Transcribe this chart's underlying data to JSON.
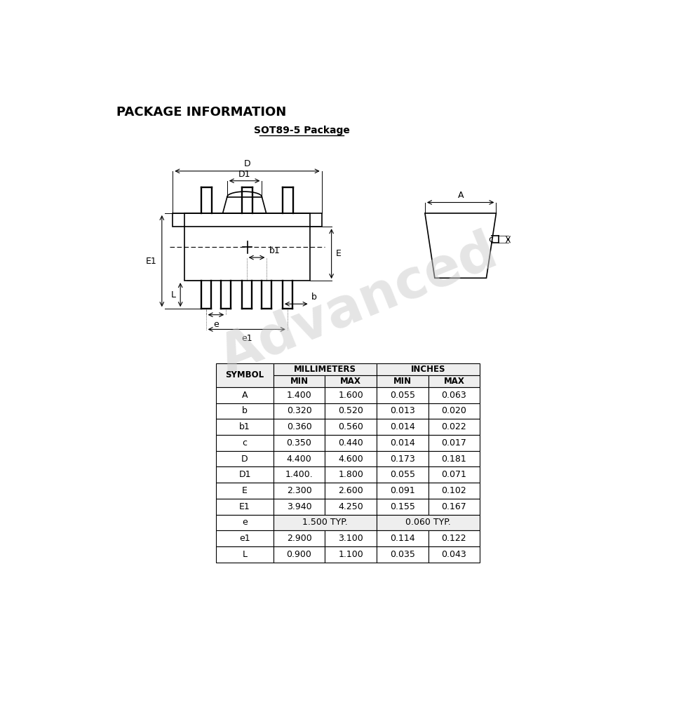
{
  "title": "PACKAGE INFORMATION",
  "subtitle": "SOT89-5 Package",
  "bg_color": "#ffffff",
  "table_data": {
    "rows": [
      [
        "A",
        "1.400",
        "1.600",
        "0.055",
        "0.063"
      ],
      [
        "b",
        "0.320",
        "0.520",
        "0.013",
        "0.020"
      ],
      [
        "b1",
        "0.360",
        "0.560",
        "0.014",
        "0.022"
      ],
      [
        "c",
        "0.350",
        "0.440",
        "0.014",
        "0.017"
      ],
      [
        "D",
        "4.400",
        "4.600",
        "0.173",
        "0.181"
      ],
      [
        "D1",
        "1.400.",
        "1.800",
        "0.055",
        "0.071"
      ],
      [
        "E",
        "2.300",
        "2.600",
        "0.091",
        "0.102"
      ],
      [
        "E1",
        "3.940",
        "4.250",
        "0.155",
        "0.167"
      ],
      [
        "e",
        "1.500 TYP.",
        "",
        "0.060 TYP.",
        ""
      ],
      [
        "e1",
        "2.900",
        "3.100",
        "0.114",
        "0.122"
      ],
      [
        "L",
        "0.900",
        "1.100",
        "0.035",
        "0.043"
      ]
    ]
  }
}
